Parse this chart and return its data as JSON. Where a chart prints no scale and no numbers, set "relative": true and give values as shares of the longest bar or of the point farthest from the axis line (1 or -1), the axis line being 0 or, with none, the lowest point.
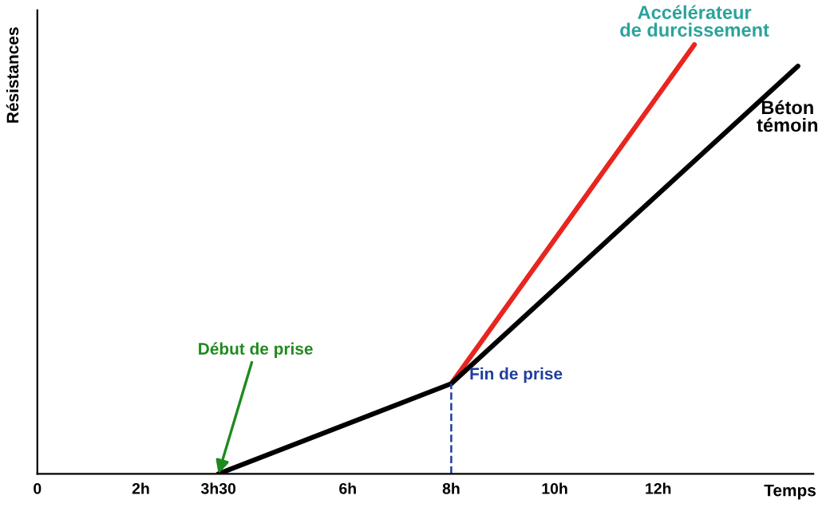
{
  "chart_data": {
    "type": "line",
    "relative": true,
    "ylabel": "Résistances",
    "xlabel": "Temps",
    "xlim": [
      0,
      15
    ],
    "xticks": [
      0,
      {
        "value": 2,
        "label": "2h"
      },
      {
        "value": 3.5,
        "label": "3h30"
      },
      {
        "value": 6,
        "label": "6h"
      },
      {
        "value": 8,
        "label": "8h"
      },
      {
        "value": 10,
        "label": "10h"
      },
      {
        "value": 12,
        "label": "12h"
      }
    ],
    "tick_labels": "x",
    "grid": false,
    "legend": false,
    "marker": "none",
    "line_style": "solid",
    "series": [
      {
        "name": "Accélérateur de durcissement",
        "color": "#e8251f",
        "x": [
          8,
          12.7
        ],
        "values": [
          0.21,
          1
        ]
      },
      {
        "name": "Béton témoin",
        "color": "#000000",
        "x": [
          3.5,
          8,
          14.7
        ],
        "values": [
          0,
          0.21,
          0.95
        ]
      }
    ],
    "ref_lines": [
      {
        "axis": "x",
        "value": 8,
        "color": "#1f3e9c",
        "line_style": "dashed"
      }
    ],
    "annotations": [
      {
        "text": "Début de prise",
        "x": 3.5,
        "y": 0
      },
      {
        "text": "Fin de prise",
        "x": 8,
        "y": 0.21
      }
    ]
  }
}
